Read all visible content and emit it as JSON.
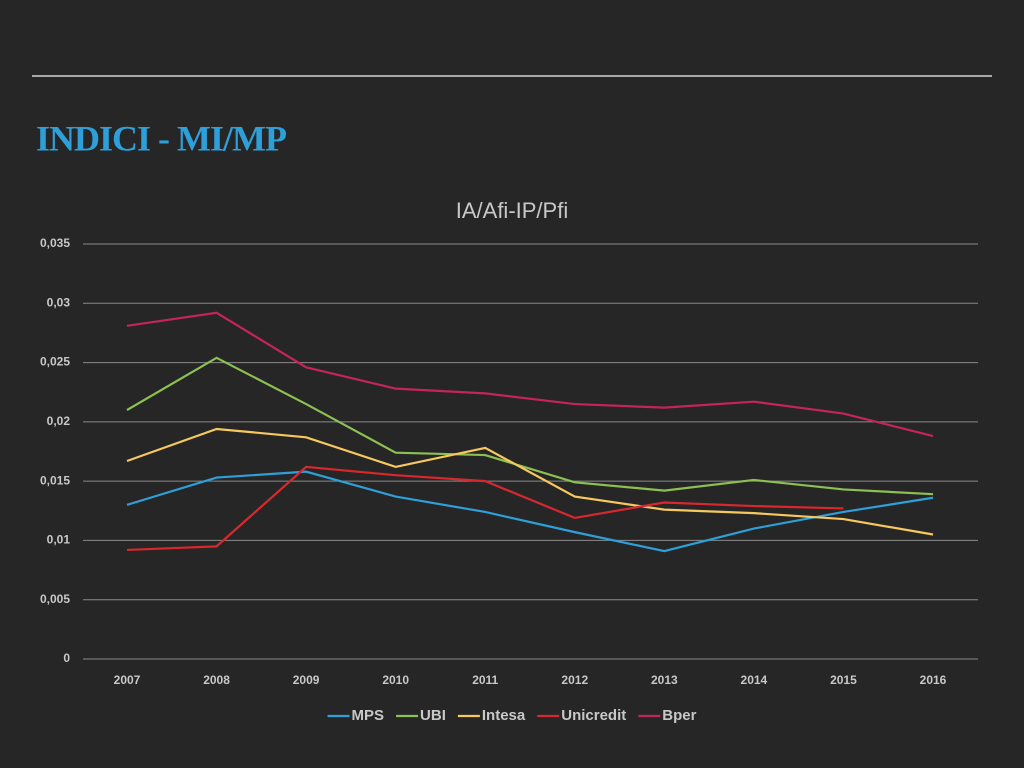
{
  "header": {
    "title": "INDICI - MI/MP"
  },
  "chart_data": {
    "type": "line",
    "title": "IA/Afi-IP/Pfi",
    "categories": [
      "2007",
      "2008",
      "2009",
      "2010",
      "2011",
      "2012",
      "2013",
      "2014",
      "2015",
      "2016"
    ],
    "series": [
      {
        "name": "MPS",
        "color": "#2e9fd8",
        "values": [
          0.013,
          0.0153,
          0.0158,
          0.0137,
          0.0124,
          0.0107,
          0.0091,
          0.011,
          0.0124,
          0.0136
        ]
      },
      {
        "name": "UBI",
        "color": "#8cc152",
        "values": [
          0.021,
          0.0254,
          0.0215,
          0.0174,
          0.0172,
          0.0149,
          0.0142,
          0.0151,
          0.0143,
          0.0139
        ]
      },
      {
        "name": "Intesa",
        "color": "#f6c85f",
        "values": [
          0.0167,
          0.0194,
          0.0187,
          0.0162,
          0.0178,
          0.0137,
          0.0126,
          0.0123,
          0.0118,
          0.0105
        ]
      },
      {
        "name": "Unicredit",
        "color": "#d8282e",
        "values": [
          0.0092,
          0.0095,
          0.0162,
          0.0155,
          0.015,
          0.0119,
          0.0132,
          0.0129,
          0.0127,
          null
        ]
      },
      {
        "name": "Bper",
        "color": "#c4245c",
        "values": [
          0.0281,
          0.0292,
          0.0246,
          0.0228,
          0.0224,
          0.0215,
          0.0212,
          0.0217,
          0.0207,
          0.0188
        ]
      }
    ],
    "ylim": [
      0,
      0.035
    ],
    "yticks": [
      0,
      {
        "value": 0.005,
        "label": "0,005"
      },
      {
        "value": 0.01,
        "label": "0,01"
      },
      {
        "value": 0.015,
        "label": "0,015"
      },
      {
        "value": 0.02,
        "label": "0,02"
      },
      {
        "value": 0.025,
        "label": "0,025"
      },
      {
        "value": 0.03,
        "label": "0,03"
      },
      {
        "value": 0.035,
        "label": "0,035"
      }
    ],
    "grid": true,
    "legend": "bottom"
  }
}
